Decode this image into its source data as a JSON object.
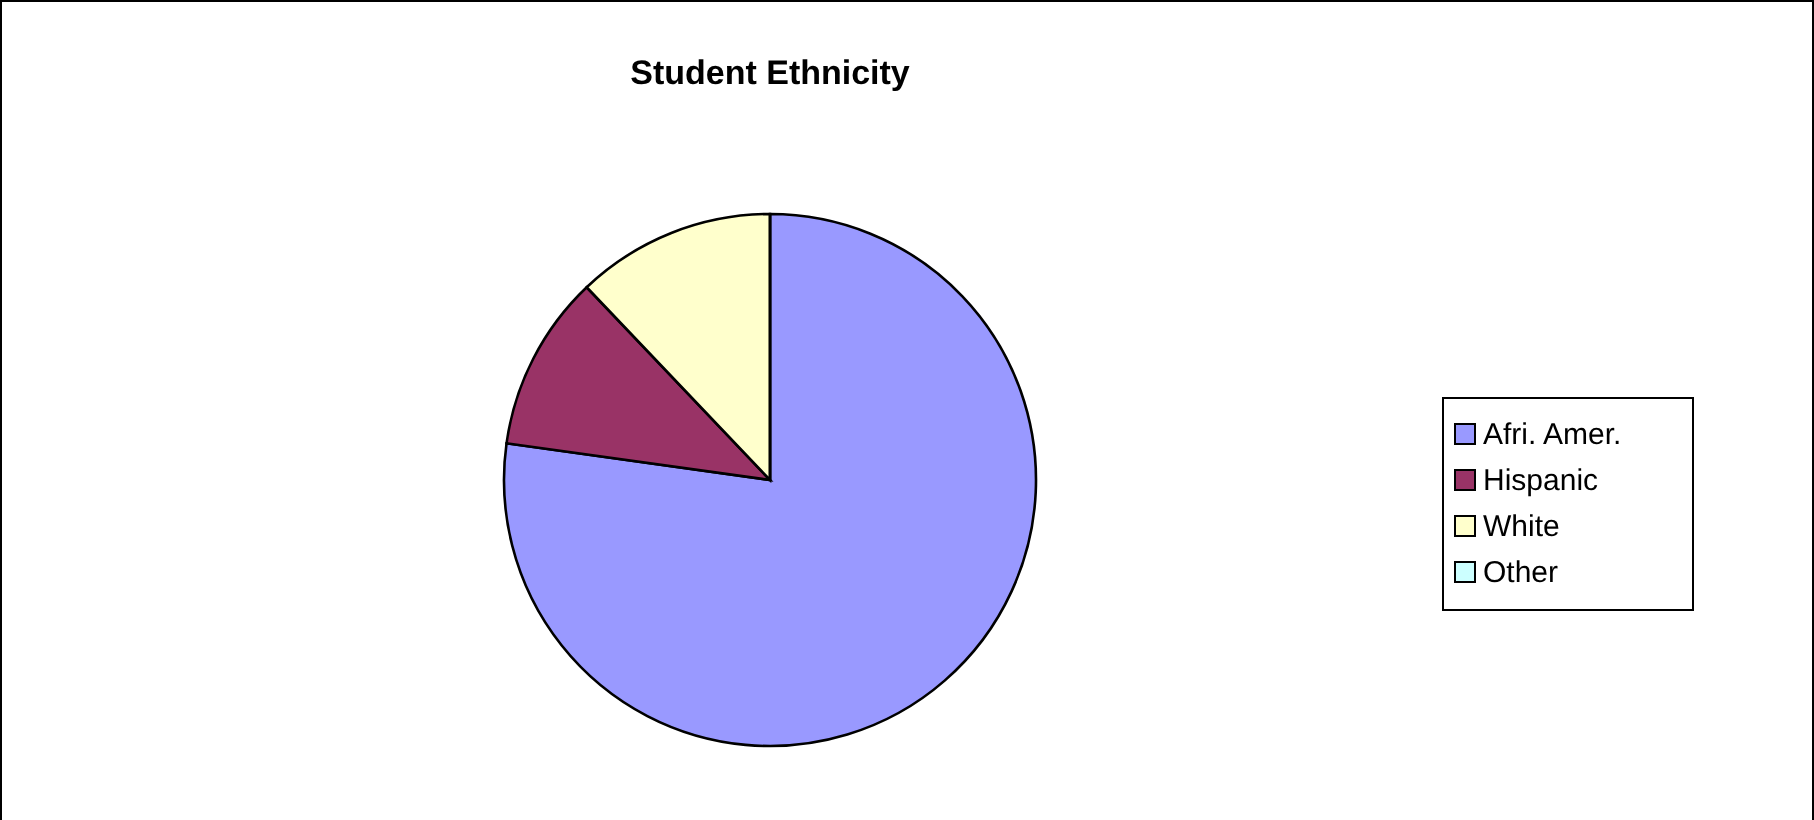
{
  "chart_data": {
    "type": "pie",
    "title": "Student Ethnicity",
    "categories": [
      "Afri. Amer.",
      "Hispanic",
      "White",
      "Other"
    ],
    "values": [
      77.2,
      10.7,
      12.1,
      0
    ],
    "colors": [
      "#9999ff",
      "#993366",
      "#ffffcc",
      "#ccffff"
    ],
    "legend": "right"
  }
}
